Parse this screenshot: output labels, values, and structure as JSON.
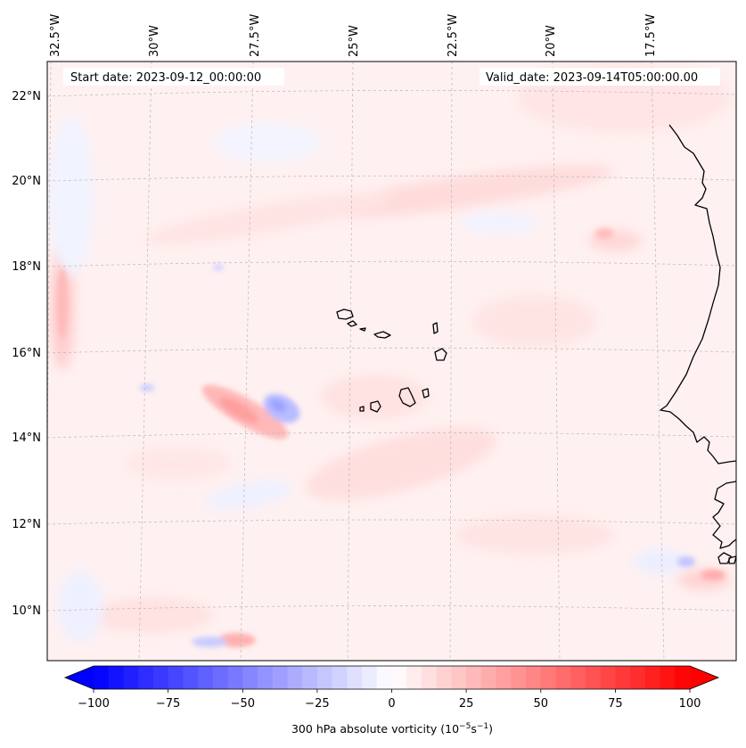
{
  "map": {
    "start_date_label": "Start date: 2023-09-12_00:00:00",
    "valid_date_label": "Valid_date: 2023-09-14T05:00:00.00",
    "longitude_labels": [
      "32.5°W",
      "30°W",
      "27.5°W",
      "25°W",
      "22.5°W",
      "20°W",
      "17.5°W"
    ],
    "latitude_labels": [
      "22°N",
      "20°N",
      "18°N",
      "16°N",
      "14°N",
      "12°N",
      "10°N"
    ],
    "extent": {
      "lon_min": -33.2,
      "lon_max": -16.1,
      "lat_min": 8.9,
      "lat_max": 22.7
    }
  },
  "colorbar": {
    "label_prefix": "300 hPa absolute vorticity (10",
    "label_exp1": "−5",
    "label_mid": "s",
    "label_exp2": "−1",
    "label_suffix": ")",
    "tick_labels": [
      "−100",
      "−75",
      "−50",
      "−25",
      "0",
      "25",
      "50",
      "75",
      "100"
    ],
    "range": [
      -100,
      100
    ],
    "levels": 41,
    "colormap": "bwr",
    "extend": "both"
  },
  "colors": {
    "negative": "#0000ff",
    "neutral": "#ffffff",
    "positive": "#ff0000",
    "coastline": "#000000",
    "gridline": "#b0b0b0"
  }
}
